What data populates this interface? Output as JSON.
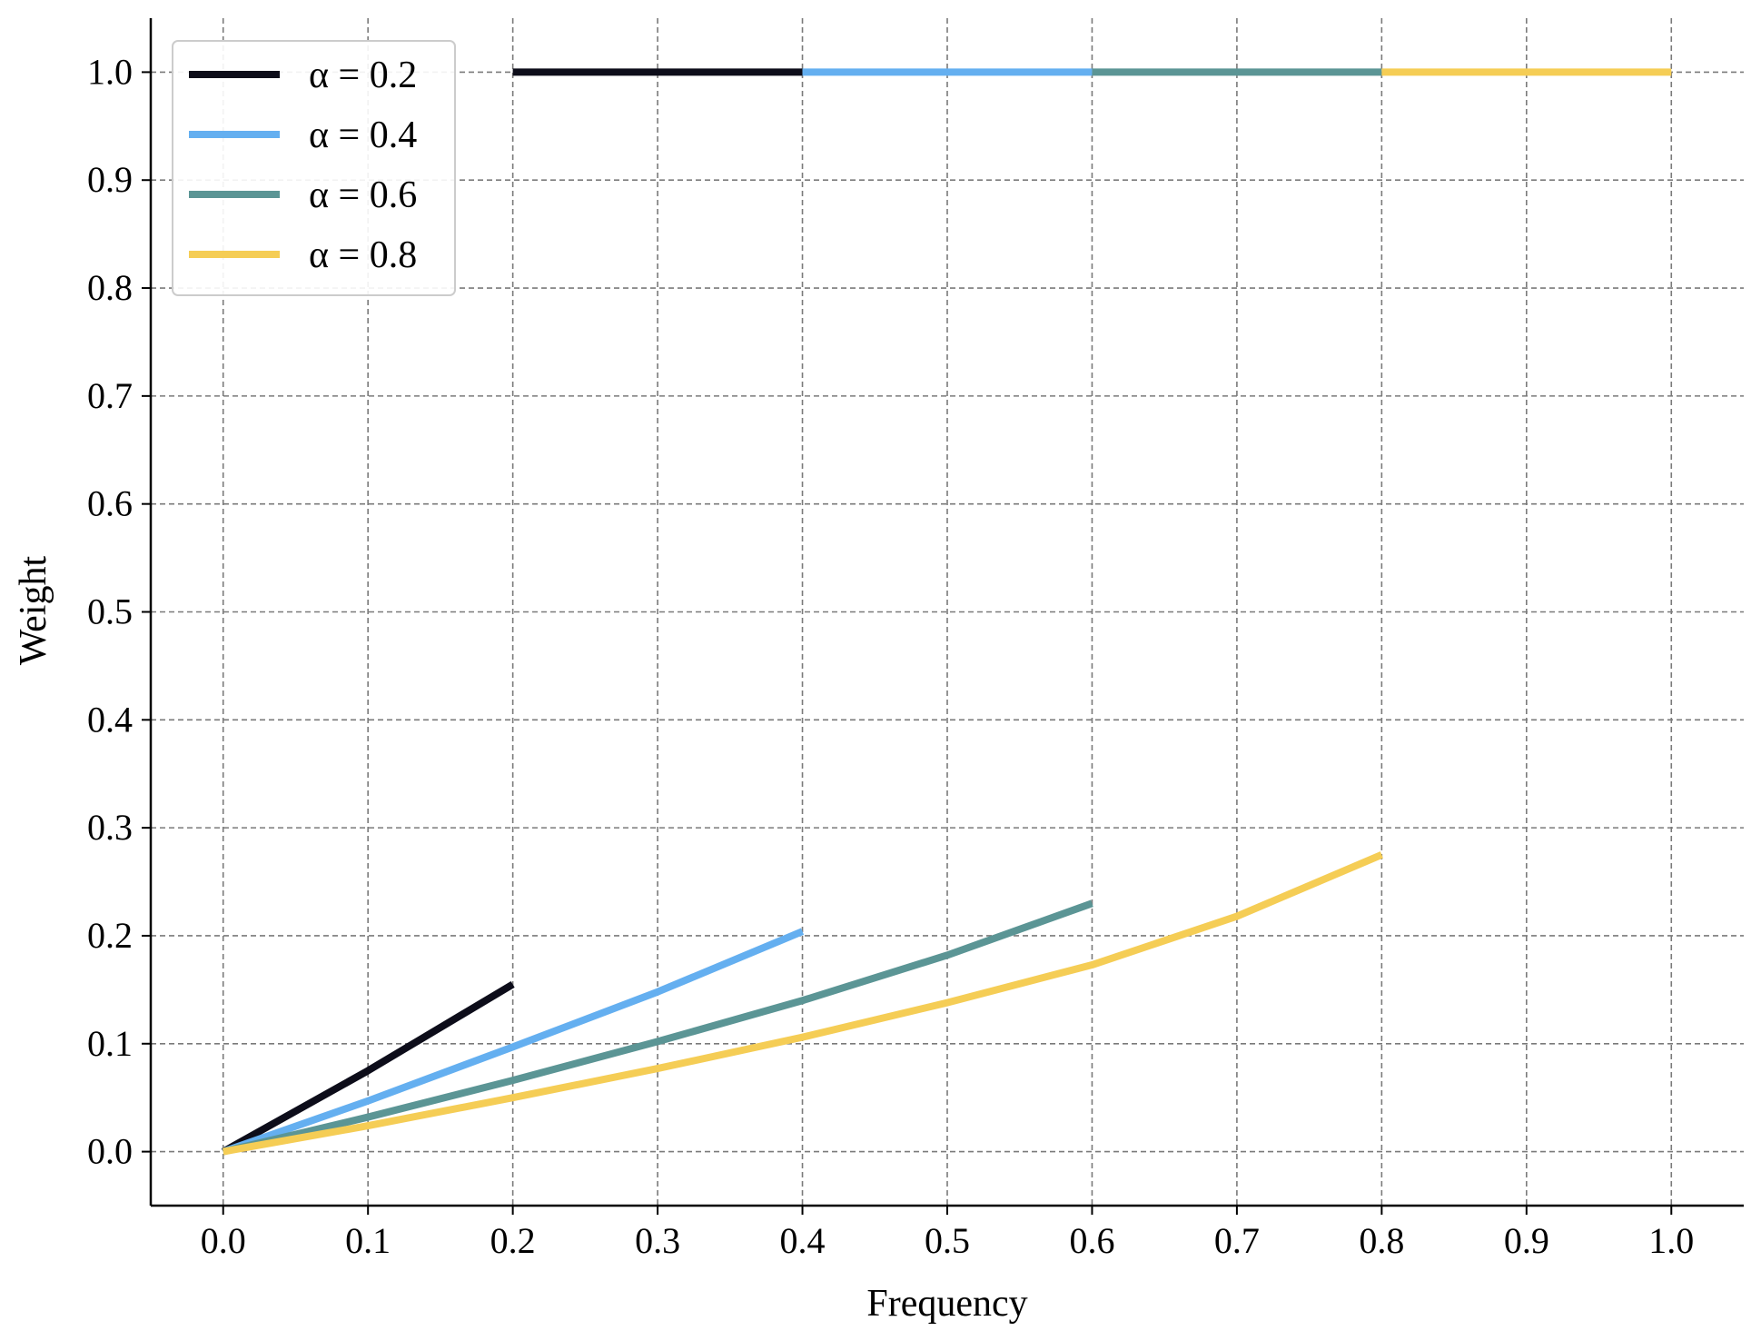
{
  "chart_data": {
    "type": "line",
    "title": "",
    "xlabel": "Frequency",
    "ylabel": "Weight",
    "xlim": [
      -0.05,
      1.05
    ],
    "ylim": [
      -0.05,
      1.05
    ],
    "x_ticks": [
      "0.0",
      "0.1",
      "0.2",
      "0.3",
      "0.4",
      "0.5",
      "0.6",
      "0.7",
      "0.8",
      "0.9",
      "1.0"
    ],
    "y_ticks": [
      "0.0",
      "0.1",
      "0.2",
      "0.3",
      "0.4",
      "0.5",
      "0.6",
      "0.7",
      "0.8",
      "0.9",
      "1.0"
    ],
    "grid": true,
    "legend_position": "top-left",
    "series": [
      {
        "name": "α = 0.2",
        "color": "#0d0d1a",
        "points": [
          [
            0.0,
            0.0
          ],
          [
            0.1,
            0.075
          ],
          [
            0.2,
            0.155
          ]
        ],
        "plateau": [
          [
            0.2,
            1.0
          ],
          [
            0.4,
            1.0
          ]
        ]
      },
      {
        "name": "α = 0.4",
        "color": "#64aff0",
        "points": [
          [
            0.0,
            0.0
          ],
          [
            0.1,
            0.047
          ],
          [
            0.2,
            0.097
          ],
          [
            0.3,
            0.148
          ],
          [
            0.4,
            0.204
          ]
        ],
        "plateau": [
          [
            0.4,
            1.0
          ],
          [
            0.6,
            1.0
          ]
        ]
      },
      {
        "name": "α = 0.6",
        "color": "#5b9595",
        "points": [
          [
            0.0,
            0.0
          ],
          [
            0.1,
            0.032
          ],
          [
            0.2,
            0.066
          ],
          [
            0.3,
            0.102
          ],
          [
            0.4,
            0.14
          ],
          [
            0.5,
            0.182
          ],
          [
            0.6,
            0.23
          ]
        ],
        "plateau": [
          [
            0.6,
            1.0
          ],
          [
            0.8,
            1.0
          ]
        ]
      },
      {
        "name": "α = 0.8",
        "color": "#f5cd55",
        "points": [
          [
            0.0,
            0.0
          ],
          [
            0.1,
            0.024
          ],
          [
            0.2,
            0.05
          ],
          [
            0.3,
            0.077
          ],
          [
            0.4,
            0.106
          ],
          [
            0.5,
            0.138
          ],
          [
            0.6,
            0.173
          ],
          [
            0.7,
            0.218
          ],
          [
            0.8,
            0.275
          ]
        ],
        "plateau": [
          [
            0.8,
            1.0
          ],
          [
            1.0,
            1.0
          ]
        ]
      }
    ]
  }
}
